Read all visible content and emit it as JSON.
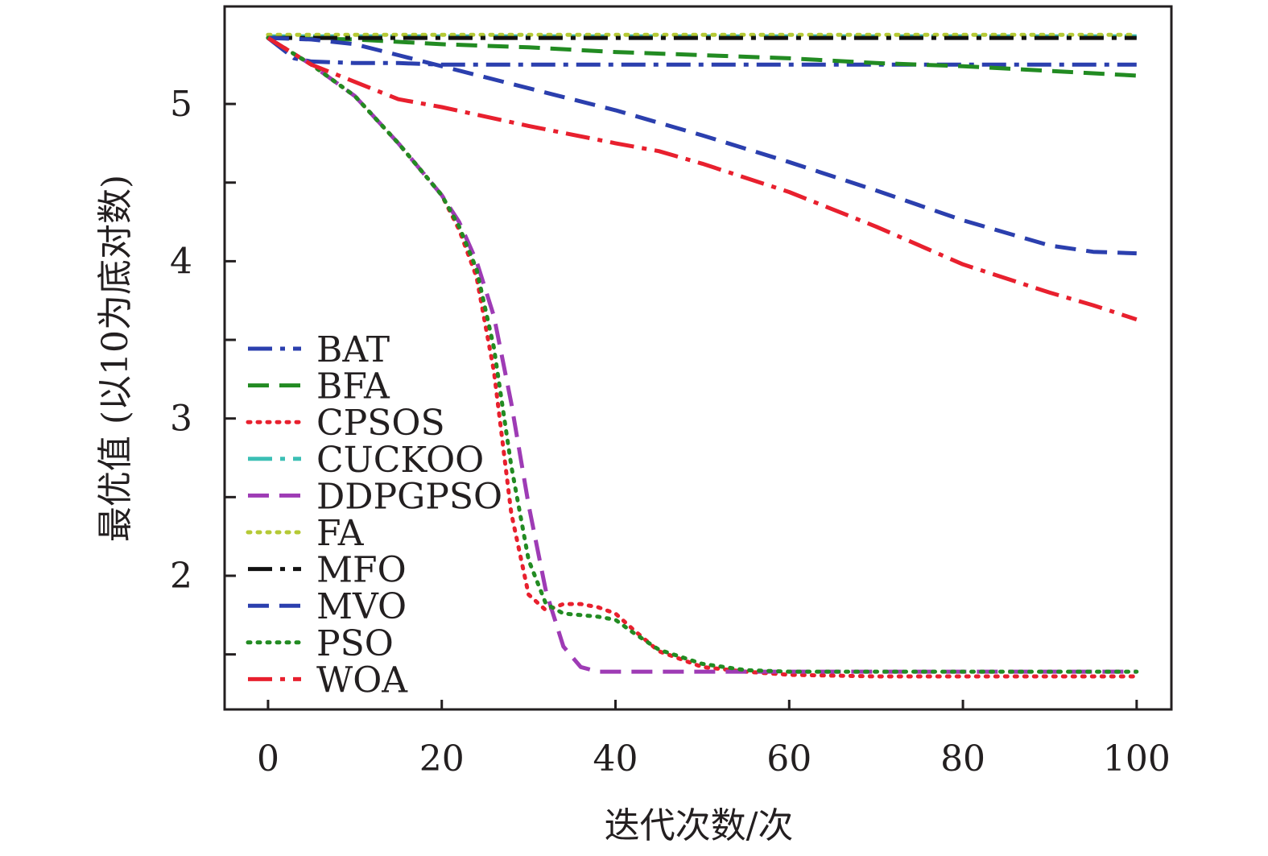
{
  "chart_data": {
    "type": "line",
    "title": "",
    "xlabel": "迭代次数/次",
    "ylabel": "最优值 (以10为底对数)",
    "xlim": [
      -5,
      104
    ],
    "ylim": [
      1.15,
      5.62
    ],
    "xticks": [
      0,
      20,
      40,
      60,
      80,
      100
    ],
    "yticks": [
      2,
      3,
      4,
      5
    ],
    "yticks_minor": [
      1.5,
      2.5,
      3.5,
      4.5
    ],
    "grid": false,
    "legend_position": "lower-left",
    "series": [
      {
        "name": "BAT",
        "color": "#2b3fae",
        "dash": "dashdot",
        "x": [
          0,
          3,
          5,
          10,
          15,
          20,
          30,
          40,
          60,
          80,
          100
        ],
        "y": [
          5.42,
          5.29,
          5.27,
          5.26,
          5.26,
          5.25,
          5.25,
          5.25,
          5.25,
          5.25,
          5.25
        ]
      },
      {
        "name": "BFA",
        "color": "#228b22",
        "dash": "dashed",
        "x": [
          0,
          10,
          20,
          30,
          40,
          50,
          60,
          70,
          80,
          90,
          100
        ],
        "y": [
          5.42,
          5.41,
          5.38,
          5.36,
          5.33,
          5.31,
          5.29,
          5.26,
          5.24,
          5.21,
          5.18
        ]
      },
      {
        "name": "CPSOS",
        "color": "#e8202e",
        "dash": "dotted",
        "x": [
          0,
          5,
          10,
          15,
          20,
          22,
          24,
          26,
          28,
          30,
          32,
          34,
          36,
          38,
          40,
          42,
          45,
          50,
          55,
          60,
          70,
          80,
          90,
          100
        ],
        "y": [
          5.42,
          5.25,
          5.05,
          4.75,
          4.42,
          4.2,
          3.9,
          3.3,
          2.4,
          1.88,
          1.78,
          1.82,
          1.82,
          1.8,
          1.76,
          1.66,
          1.52,
          1.42,
          1.39,
          1.37,
          1.36,
          1.36,
          1.36,
          1.36
        ]
      },
      {
        "name": "CUCKOO",
        "color": "#3bbfb5",
        "dash": "dashdot",
        "x": [
          0,
          100
        ],
        "y": [
          5.43,
          5.43
        ]
      },
      {
        "name": "DDPGPSO",
        "color": "#9e3bb5",
        "dash": "dashed",
        "x": [
          0,
          5,
          10,
          15,
          20,
          22,
          24,
          26,
          28,
          30,
          32,
          34,
          36,
          38,
          40,
          50,
          60,
          70,
          80,
          90,
          100
        ],
        "y": [
          5.42,
          5.25,
          5.05,
          4.75,
          4.42,
          4.25,
          4.0,
          3.65,
          3.1,
          2.45,
          1.9,
          1.55,
          1.42,
          1.39,
          1.39,
          1.39,
          1.39,
          1.39,
          1.39,
          1.39,
          1.39
        ]
      },
      {
        "name": "FA",
        "color": "#b5c935",
        "dash": "dotted",
        "x": [
          0,
          100
        ],
        "y": [
          5.44,
          5.44
        ]
      },
      {
        "name": "MFO",
        "color": "#111111",
        "dash": "dashdot",
        "x": [
          0,
          100
        ],
        "y": [
          5.42,
          5.42
        ]
      },
      {
        "name": "MVO",
        "color": "#2b3fae",
        "dash": "dashed",
        "x": [
          0,
          5,
          10,
          15,
          20,
          30,
          40,
          50,
          60,
          70,
          80,
          90,
          95,
          100
        ],
        "y": [
          5.42,
          5.41,
          5.38,
          5.31,
          5.24,
          5.1,
          4.96,
          4.8,
          4.63,
          4.45,
          4.26,
          4.1,
          4.06,
          4.05
        ]
      },
      {
        "name": "PSO",
        "color": "#228b22",
        "dash": "dotted",
        "x": [
          0,
          5,
          10,
          15,
          20,
          22,
          24,
          26,
          28,
          30,
          32,
          34,
          36,
          38,
          40,
          42,
          45,
          50,
          55,
          60,
          70,
          80,
          90,
          100
        ],
        "y": [
          5.42,
          5.25,
          5.05,
          4.75,
          4.42,
          4.22,
          3.95,
          3.45,
          2.7,
          2.1,
          1.82,
          1.76,
          1.75,
          1.74,
          1.72,
          1.64,
          1.53,
          1.44,
          1.4,
          1.39,
          1.39,
          1.39,
          1.39,
          1.39
        ]
      },
      {
        "name": "WOA",
        "color": "#e8202e",
        "dash": "dashdot",
        "x": [
          0,
          5,
          10,
          15,
          20,
          30,
          40,
          45,
          50,
          60,
          70,
          80,
          90,
          95,
          100
        ],
        "y": [
          5.42,
          5.25,
          5.14,
          5.03,
          4.98,
          4.86,
          4.75,
          4.7,
          4.62,
          4.44,
          4.22,
          3.98,
          3.8,
          3.72,
          3.63
        ]
      }
    ]
  }
}
